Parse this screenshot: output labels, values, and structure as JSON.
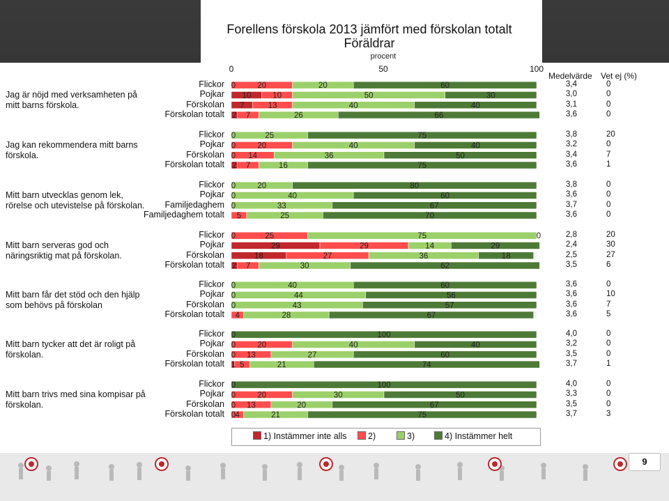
{
  "chart_data": {
    "type": "bar",
    "stacked": true,
    "orientation": "horizontal",
    "title": "Forellens förskola 2013 jämfört med förskolan totalt",
    "subtitle": "Föräldrar",
    "xlabel": "procent",
    "xlim": [
      0,
      100
    ],
    "x_ticks": [
      "0",
      "50",
      "100"
    ],
    "grid": false,
    "legend_position": "bottom",
    "column_headers": {
      "mean": "Medelvärde",
      "dont_know": "Vet ej (%)"
    },
    "legend": [
      {
        "label": "1) Instämmer inte alls",
        "color": "#c0282d"
      },
      {
        "label": "2)",
        "color": "#ff4d4d"
      },
      {
        "label": "3)",
        "color": "#9cd06a"
      },
      {
        "label": "4) Instämmer helt",
        "color": "#4e7a37"
      }
    ],
    "groups": [
      {
        "question": "Jag är nöjd med verksamheten på mitt barns förskola.",
        "rows": [
          {
            "label": "Flickor",
            "values": [
              0,
              20,
              20,
              60
            ],
            "shown": [
              "0",
              "20",
              "20",
              "60"
            ],
            "mean": "3,4",
            "dont_know": "0"
          },
          {
            "label": "Pojkar",
            "values": [
              10,
              10,
              50,
              30
            ],
            "shown": [
              "10",
              "10",
              "50",
              "30"
            ],
            "mean": "3,0",
            "dont_know": "0"
          },
          {
            "label": "Förskolan",
            "values": [
              7,
              13,
              40,
              40
            ],
            "shown": [
              "7",
              "13",
              "40",
              "40"
            ],
            "mean": "3,1",
            "dont_know": "0"
          },
          {
            "label": "Förskolan totalt",
            "values": [
              2,
              7,
              26,
              66
            ],
            "shown": [
              "2",
              "7",
              "26",
              "66"
            ],
            "mean": "3,6",
            "dont_know": "0"
          }
        ]
      },
      {
        "question": "Jag kan rekommendera mitt barns förskola.",
        "rows": [
          {
            "label": "Flickor",
            "values": [
              0,
              0,
              25,
              75
            ],
            "shown": [
              "0",
              "",
              "25",
              "75"
            ],
            "mean": "3,8",
            "dont_know": "20"
          },
          {
            "label": "Pojkar",
            "values": [
              0,
              20,
              40,
              40
            ],
            "shown": [
              "0",
              "20",
              "40",
              "40"
            ],
            "mean": "3,2",
            "dont_know": "0"
          },
          {
            "label": "Förskolan",
            "values": [
              0,
              14,
              36,
              50
            ],
            "shown": [
              "0",
              "14",
              "36",
              "50"
            ],
            "mean": "3,4",
            "dont_know": "7"
          },
          {
            "label": "Förskolan totalt",
            "values": [
              2,
              7,
              16,
              75
            ],
            "shown": [
              "2",
              "7",
              "16",
              "75"
            ],
            "mean": "3,6",
            "dont_know": "1"
          }
        ]
      },
      {
        "question": "Mitt barn utvecklas genom lek, rörelse och utevistelse på förskolan.",
        "rows": [
          {
            "label": "Flickor",
            "values": [
              0,
              0,
              20,
              80
            ],
            "shown": [
              "0",
              "",
              "20",
              "80"
            ],
            "mean": "3,8",
            "dont_know": "0"
          },
          {
            "label": "Pojkar",
            "values": [
              0,
              0,
              40,
              60
            ],
            "shown": [
              "0",
              "",
              "40",
              "60"
            ],
            "mean": "3,6",
            "dont_know": "0"
          },
          {
            "label": "Familjedaghem",
            "values": [
              0,
              0,
              33,
              67
            ],
            "shown": [
              "0",
              "",
              "33",
              "67"
            ],
            "mean": "3,7",
            "dont_know": "0"
          },
          {
            "label": "Familjedaghem totalt",
            "values": [
              0,
              5,
              25,
              70
            ],
            "shown": [
              "",
              "5",
              "25",
              "70"
            ],
            "mean": "3,6",
            "dont_know": "0"
          }
        ]
      },
      {
        "question": "Mitt barn serveras god och näringsriktig mat på förskolan.",
        "rows": [
          {
            "label": "Flickor",
            "values": [
              0,
              25,
              75,
              0
            ],
            "shown": [
              "0",
              "25",
              "75",
              "0"
            ],
            "mean": "2,8",
            "dont_know": "20"
          },
          {
            "label": "Pojkar",
            "values": [
              29,
              29,
              14,
              29
            ],
            "shown": [
              "29",
              "29",
              "14",
              "29"
            ],
            "mean": "2,4",
            "dont_know": "30"
          },
          {
            "label": "Förskolan",
            "values": [
              18,
              27,
              36,
              18
            ],
            "shown": [
              "18",
              "27",
              "36",
              "18"
            ],
            "mean": "2,5",
            "dont_know": "27"
          },
          {
            "label": "Förskolan totalt",
            "values": [
              2,
              7,
              30,
              62
            ],
            "shown": [
              "2",
              "7",
              "30",
              "62"
            ],
            "mean": "3,5",
            "dont_know": "6"
          }
        ]
      },
      {
        "question": "Mitt barn får det stöd och den hjälp som behövs på förskolan",
        "rows": [
          {
            "label": "Flickor",
            "values": [
              0,
              0,
              40,
              60
            ],
            "shown": [
              "0",
              "",
              "40",
              "60"
            ],
            "mean": "3,6",
            "dont_know": "0"
          },
          {
            "label": "Pojkar",
            "values": [
              0,
              0,
              44,
              56
            ],
            "shown": [
              "0",
              "",
              "44",
              "56"
            ],
            "mean": "3,6",
            "dont_know": "10"
          },
          {
            "label": "Förskolan",
            "values": [
              0,
              0,
              43,
              57
            ],
            "shown": [
              "0",
              "",
              "43",
              "57"
            ],
            "mean": "3,6",
            "dont_know": "7"
          },
          {
            "label": "Förskolan totalt",
            "values": [
              0,
              4,
              28,
              67
            ],
            "shown": [
              "",
              "4",
              "28",
              "67"
            ],
            "mean": "3,6",
            "dont_know": "5"
          }
        ]
      },
      {
        "question": "Mitt barn tycker att det är roligt på förskolan.",
        "rows": [
          {
            "label": "Flickor",
            "values": [
              0,
              0,
              0,
              100
            ],
            "shown": [
              "0",
              "",
              "",
              "100"
            ],
            "mean": "4,0",
            "dont_know": "0"
          },
          {
            "label": "Pojkar",
            "values": [
              0,
              20,
              40,
              40
            ],
            "shown": [
              "0",
              "20",
              "40",
              "40"
            ],
            "mean": "3,2",
            "dont_know": "0"
          },
          {
            "label": "Förskolan",
            "values": [
              0,
              13,
              27,
              60
            ],
            "shown": [
              "0",
              "13",
              "27",
              "60"
            ],
            "mean": "3,5",
            "dont_know": "0"
          },
          {
            "label": "Förskolan totalt",
            "values": [
              1,
              5,
              21,
              74
            ],
            "shown": [
              "1",
              "5",
              "21",
              "74"
            ],
            "mean": "3,7",
            "dont_know": "1"
          }
        ]
      },
      {
        "question": "Mitt barn trivs med sina kompisar på förskolan.",
        "rows": [
          {
            "label": "Flickor",
            "values": [
              0,
              0,
              0,
              100
            ],
            "shown": [
              "0",
              "",
              "",
              "100"
            ],
            "mean": "4,0",
            "dont_know": "0"
          },
          {
            "label": "Pojkar",
            "values": [
              0,
              20,
              30,
              50
            ],
            "shown": [
              "0",
              "20",
              "30",
              "50"
            ],
            "mean": "3,3",
            "dont_know": "0"
          },
          {
            "label": "Förskolan",
            "values": [
              0,
              13,
              20,
              67
            ],
            "shown": [
              "0",
              "13",
              "20",
              "67"
            ],
            "mean": "3,5",
            "dont_know": "0"
          },
          {
            "label": "Förskolan totalt",
            "values": [
              0,
              4,
              21,
              75
            ],
            "shown": [
              "0",
              "4",
              "21",
              "75"
            ],
            "mean": "3,7",
            "dont_know": "3"
          }
        ]
      }
    ]
  },
  "page_number": "9"
}
